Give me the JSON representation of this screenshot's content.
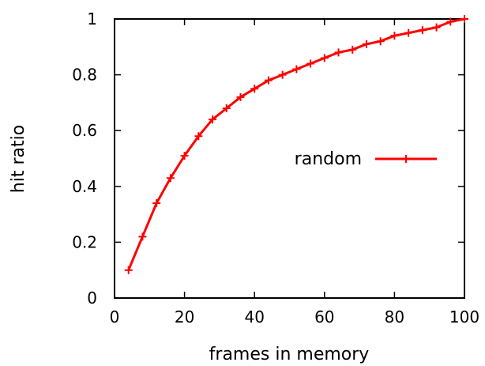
{
  "chart_data": {
    "type": "line",
    "title": "",
    "xlabel": "frames in memory",
    "ylabel": "hit ratio",
    "xlim": [
      0,
      100
    ],
    "ylim": [
      0,
      1
    ],
    "xticks": [
      0,
      20,
      40,
      60,
      80,
      100
    ],
    "yticks": [
      0,
      0.2,
      0.4,
      0.6,
      0.8,
      1
    ],
    "xtick_labels": [
      "0",
      "20",
      "40",
      "60",
      "80",
      "100"
    ],
    "ytick_labels": [
      "0",
      "0.2",
      "0.4",
      "0.6",
      "0.8",
      "1"
    ],
    "grid": false,
    "legend_position": "right-middle",
    "series": [
      {
        "name": "random",
        "color": "#ff0000",
        "marker": "plus",
        "x": [
          4,
          8,
          12,
          16,
          20,
          24,
          28,
          32,
          36,
          40,
          44,
          48,
          52,
          56,
          60,
          64,
          68,
          72,
          76,
          80,
          84,
          88,
          92,
          96,
          100
        ],
        "y": [
          0.1,
          0.22,
          0.34,
          0.43,
          0.51,
          0.58,
          0.64,
          0.68,
          0.72,
          0.75,
          0.78,
          0.8,
          0.82,
          0.84,
          0.86,
          0.88,
          0.89,
          0.91,
          0.92,
          0.94,
          0.95,
          0.96,
          0.97,
          0.99,
          1.0
        ]
      }
    ]
  }
}
